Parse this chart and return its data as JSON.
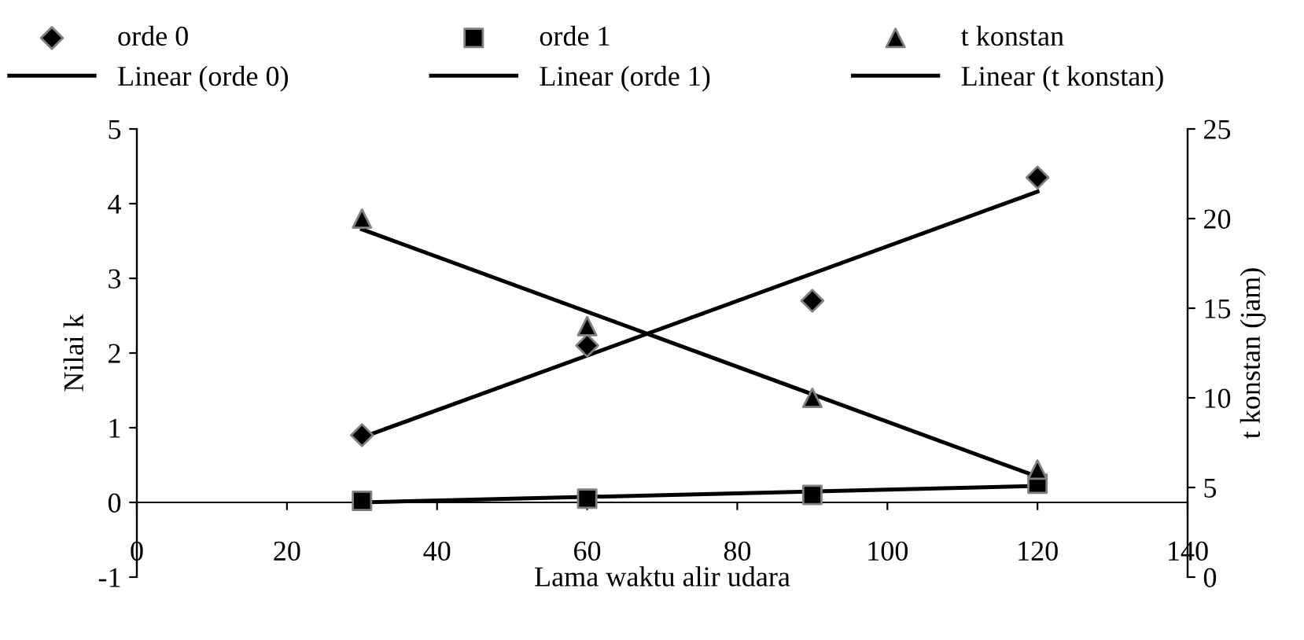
{
  "chart_data": {
    "type": "scatter",
    "xlabel": "Lama waktu alir udara",
    "ylabel": "Nilai k",
    "y2label": "t konstan (jam)",
    "xlim": [
      0,
      140
    ],
    "xticks": [
      0,
      20,
      40,
      60,
      80,
      100,
      120,
      140
    ],
    "ylim": [
      -1,
      5
    ],
    "yticks": [
      -1,
      0,
      1,
      2,
      3,
      4,
      5
    ],
    "y2lim": [
      0,
      25
    ],
    "y2ticks": [
      0,
      5,
      10,
      15,
      20,
      25
    ],
    "grid": false,
    "legend": "top",
    "series": [
      {
        "name": "orde 0",
        "marker": "diamond",
        "color": "#000000",
        "x": [
          30,
          60,
          90,
          120
        ],
        "values": [
          0.9,
          2.1,
          2.7,
          4.35
        ]
      },
      {
        "name": "orde 1",
        "marker": "square",
        "color": "#000000",
        "x": [
          30,
          60,
          90,
          120
        ],
        "values": [
          0.02,
          0.05,
          0.1,
          0.25
        ]
      },
      {
        "name": "t konstan",
        "marker": "triangle",
        "color": "#000000",
        "axis": "y2",
        "x": [
          30,
          60,
          90,
          120
        ],
        "values": [
          20,
          14,
          10,
          6
        ]
      },
      {
        "name": "Linear (orde 0)",
        "type": "line",
        "marker": "none",
        "color": "#000000",
        "x": [
          30,
          120
        ],
        "values": [
          0.87,
          4.16
        ]
      },
      {
        "name": "Linear (orde 1)",
        "type": "line",
        "marker": "none",
        "color": "#000000",
        "x": [
          30,
          120
        ],
        "values": [
          0.0,
          0.22
        ]
      },
      {
        "name": "Linear (t konstan)",
        "type": "line",
        "marker": "none",
        "color": "#000000",
        "axis": "y2",
        "x": [
          30,
          120
        ],
        "values": [
          19.4,
          5.6
        ]
      }
    ]
  }
}
